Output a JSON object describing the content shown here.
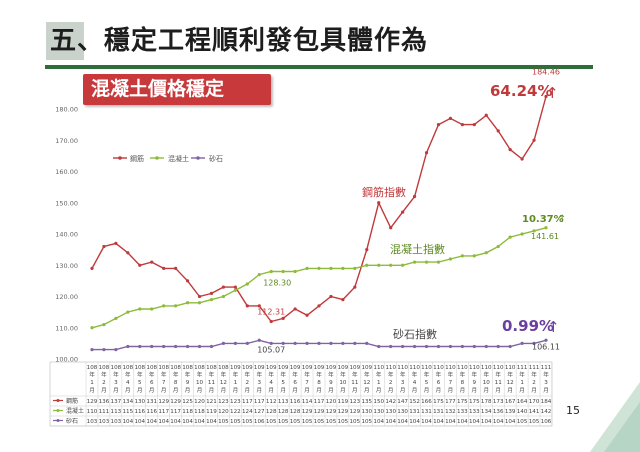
{
  "page": {
    "title": "五、穩定工程順利發包具體作為",
    "subtitle": "混凝土價格穩定",
    "page_number": "15"
  },
  "colors": {
    "rebar": "#c0393b",
    "concrete": "#8dbb3a",
    "gravel": "#8064a2",
    "title_line": "#2e6e3a",
    "subtitle_bg": "#c8393b"
  },
  "chart_data": {
    "type": "line",
    "categories": [
      "108年1月",
      "108年2月",
      "108年3月",
      "108年4月",
      "108年5月",
      "108年6月",
      "108年7月",
      "108年8月",
      "108年9月",
      "108年10月",
      "108年11月",
      "108年12月",
      "109年1月",
      "109年2月",
      "109年3月",
      "109年4月",
      "109年5月",
      "109年6月",
      "109年7月",
      "109年8月",
      "109年9月",
      "109年10月",
      "109年11月",
      "109年12月",
      "110年1月",
      "110年2月",
      "110年3月",
      "110年4月",
      "110年5月",
      "110年6月",
      "110年7月",
      "110年8月",
      "110年9月",
      "110年10月",
      "110年11月",
      "110年12月",
      "111年1月",
      "111年2月",
      "111年3月"
    ],
    "category_labels": [
      [
        "108",
        "年",
        "1",
        "月"
      ],
      [
        "108",
        "年",
        "2",
        "月"
      ],
      [
        "108",
        "年",
        "3",
        "月"
      ],
      [
        "108",
        "年",
        "4",
        "月"
      ],
      [
        "108",
        "年",
        "5",
        "月"
      ],
      [
        "108",
        "年",
        "6",
        "月"
      ],
      [
        "108",
        "年",
        "7",
        "月"
      ],
      [
        "108",
        "年",
        "8",
        "月"
      ],
      [
        "108",
        "年",
        "9",
        "月"
      ],
      [
        "108",
        "年",
        "10",
        "月"
      ],
      [
        "108",
        "年",
        "11",
        "月"
      ],
      [
        "108",
        "年",
        "12",
        "月"
      ],
      [
        "109",
        "年",
        "1",
        "月"
      ],
      [
        "109",
        "年",
        "2",
        "月"
      ],
      [
        "109",
        "年",
        "3",
        "月"
      ],
      [
        "109",
        "年",
        "4",
        "月"
      ],
      [
        "109",
        "年",
        "5",
        "月"
      ],
      [
        "109",
        "年",
        "6",
        "月"
      ],
      [
        "109",
        "年",
        "7",
        "月"
      ],
      [
        "109",
        "年",
        "8",
        "月"
      ],
      [
        "109",
        "年",
        "9",
        "月"
      ],
      [
        "109",
        "年",
        "10",
        "月"
      ],
      [
        "109",
        "年",
        "11",
        "月"
      ],
      [
        "109",
        "年",
        "12",
        "月"
      ],
      [
        "110",
        "年",
        "1",
        "月"
      ],
      [
        "110",
        "年",
        "2",
        "月"
      ],
      [
        "110",
        "年",
        "3",
        "月"
      ],
      [
        "110",
        "年",
        "4",
        "月"
      ],
      [
        "110",
        "年",
        "5",
        "月"
      ],
      [
        "110",
        "年",
        "6",
        "月"
      ],
      [
        "110",
        "年",
        "7",
        "月"
      ],
      [
        "110",
        "年",
        "8",
        "月"
      ],
      [
        "110",
        "年",
        "9",
        "月"
      ],
      [
        "110",
        "年",
        "10",
        "月"
      ],
      [
        "110",
        "年",
        "11",
        "月"
      ],
      [
        "110",
        "年",
        "12",
        "月"
      ],
      [
        "111",
        "年",
        "1",
        "月"
      ],
      [
        "111",
        "年",
        "2",
        "月"
      ],
      [
        "111",
        "年",
        "3",
        "月"
      ]
    ],
    "series": [
      {
        "name": "鋼筋",
        "color": "#c0393b",
        "values": [
          129,
          136,
          137,
          134,
          130,
          131,
          129,
          129,
          125,
          120,
          121,
          123,
          123,
          117,
          117,
          112,
          113,
          116,
          114,
          117,
          120,
          119,
          123,
          135,
          150,
          142,
          147,
          152,
          166,
          175,
          177,
          175,
          175,
          178,
          173,
          167,
          164,
          170,
          184
        ]
      },
      {
        "name": "混凝土",
        "color": "#8dbb3a",
        "values": [
          110,
          111,
          113,
          115,
          116,
          116,
          117,
          117,
          118,
          118,
          119,
          120,
          122,
          124,
          127,
          128,
          128,
          128,
          129,
          129,
          129,
          129,
          129,
          130,
          130,
          130,
          130,
          131,
          131,
          131,
          132,
          133,
          133,
          134,
          136,
          139,
          140,
          141,
          142
        ]
      },
      {
        "name": "砂石",
        "color": "#8064a2",
        "values": [
          103,
          103,
          103,
          104,
          104,
          104,
          104,
          104,
          104,
          104,
          104,
          105,
          105,
          105,
          106,
          105,
          105,
          105,
          105,
          105,
          105,
          105,
          105,
          105,
          104,
          104,
          104,
          104,
          104,
          104,
          104,
          104,
          104,
          104,
          104,
          104,
          105,
          105,
          106
        ]
      }
    ],
    "table_rows": [
      {
        "label": "鋼筋",
        "values": [
          "129",
          "136",
          "137",
          "134",
          "130",
          "131",
          "129",
          "129",
          "125",
          "120",
          "121",
          "123",
          "123",
          "117",
          "117",
          "112",
          "113",
          "116",
          "114",
          "117",
          "120",
          "119",
          "123",
          "135",
          "150",
          "142",
          "147",
          "152",
          "166",
          "175",
          "177",
          "175",
          "175",
          "178",
          "173",
          "167",
          "164",
          "170",
          "184"
        ]
      },
      {
        "label": "混凝土",
        "values": [
          "110",
          "111",
          "113",
          "115",
          "116",
          "116",
          "117",
          "117",
          "118",
          "118",
          "119",
          "120",
          "122",
          "124",
          "127",
          "128",
          "128",
          "128",
          "129",
          "129",
          "129",
          "129",
          "129",
          "130",
          "130",
          "130",
          "130",
          "131",
          "131",
          "131",
          "132",
          "133",
          "133",
          "134",
          "136",
          "139",
          "140",
          "141",
          "142"
        ]
      },
      {
        "label": "砂石",
        "values": [
          "103",
          "103",
          "103",
          "104",
          "104",
          "104",
          "104",
          "104",
          "104",
          "104",
          "104",
          "105",
          "105",
          "105",
          "106",
          "105",
          "105",
          "105",
          "105",
          "105",
          "105",
          "105",
          "105",
          "105",
          "104",
          "104",
          "104",
          "104",
          "104",
          "104",
          "104",
          "104",
          "104",
          "104",
          "104",
          "104",
          "105",
          "105",
          "106"
        ]
      }
    ],
    "y_ticks": [
      "100.00",
      "110.00",
      "120.00",
      "130.00",
      "140.00",
      "150.00",
      "160.00",
      "170.00",
      "180.00"
    ],
    "ylim": [
      100,
      185
    ],
    "legend": [
      "鋼筋",
      "混凝土",
      "砂石"
    ],
    "legend_position": "top-left",
    "grid": false,
    "point_labels": [
      {
        "series": 0,
        "index": 38,
        "text": "184.46"
      },
      {
        "series": 0,
        "index": 15,
        "text": "112.31"
      },
      {
        "series": 1,
        "index": 15,
        "text": "128.30"
      },
      {
        "series": 1,
        "index": 38,
        "text": "141.61"
      },
      {
        "series": 2,
        "index": 15,
        "text": "105.07"
      },
      {
        "series": 2,
        "index": 38,
        "text": "106.11"
      }
    ],
    "series_labels": {
      "rebar": "鋼筋指數",
      "concrete": "混凝土指數",
      "gravel": "砂石指數"
    },
    "changes": {
      "rebar": "64.24%",
      "concrete": "10.37%",
      "gravel": "0.99%"
    }
  }
}
